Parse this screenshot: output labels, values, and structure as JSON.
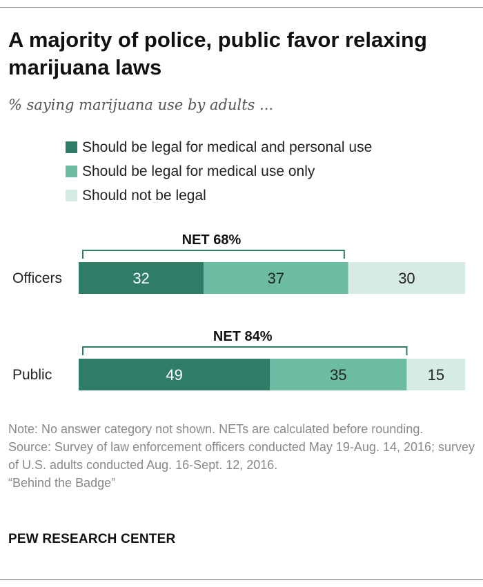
{
  "title": "A majority of police, public favor relaxing marijuana laws",
  "subtitle": "% saying marijuana use by adults ...",
  "colors": {
    "legal_both": "#2f7d66",
    "legal_medical": "#6cbba3",
    "not_legal": "#d5ebe3",
    "bracket": "#2f7d66"
  },
  "chart_data": {
    "type": "bar",
    "orientation": "horizontal",
    "stacked": true,
    "categories": [
      "Officers",
      "Public"
    ],
    "series": [
      {
        "name": "Should be legal for medical and personal use",
        "values": [
          32,
          49
        ]
      },
      {
        "name": "Should be legal for medical use only",
        "values": [
          37,
          35
        ]
      },
      {
        "name": "Should not be legal",
        "values": [
          30,
          15
        ]
      }
    ],
    "net_labels": [
      "NET 68%",
      "NET 84%"
    ],
    "net_values": [
      68,
      84
    ],
    "xlim": [
      0,
      100
    ],
    "legend_position": "top-left"
  },
  "footer": {
    "note": "Note: No answer category not shown. NETs are calculated before rounding.",
    "source": "Source: Survey of law enforcement officers conducted May 19-Aug. 14, 2016; survey of U.S. adults conducted Aug. 16-Sept. 12, 2016.",
    "report": "“Behind the Badge”",
    "brand": "PEW RESEARCH CENTER"
  }
}
